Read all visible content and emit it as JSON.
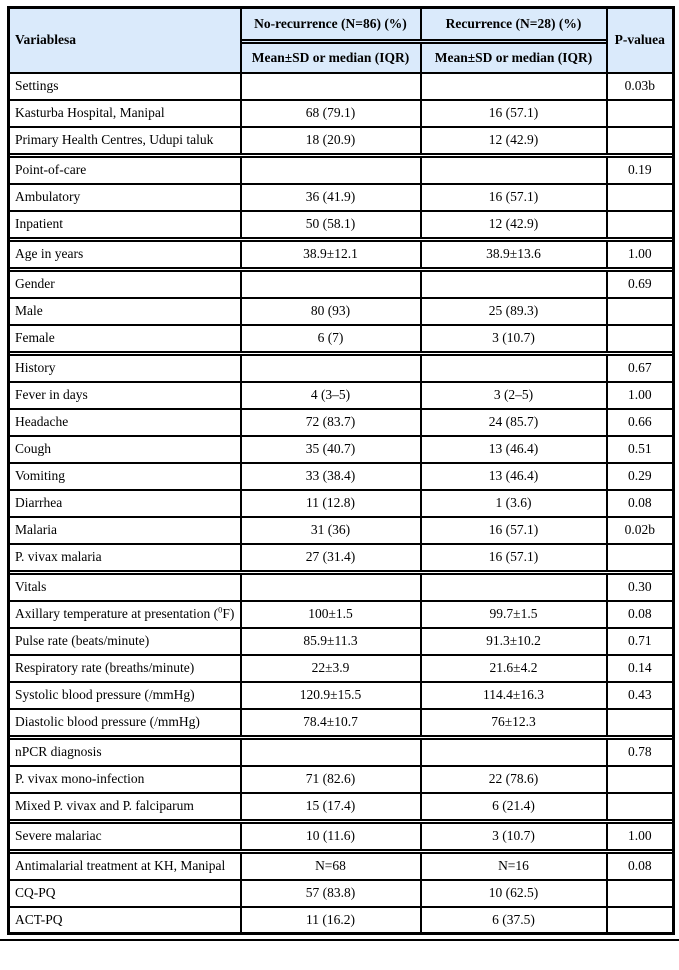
{
  "colors": {
    "header_bg": "#daeafb",
    "border": "#000000",
    "page_bg": "#ffffff"
  },
  "table": {
    "header": {
      "col_variables": "Variablesa",
      "col_no_recurrence": "No-recurrence (N=86) (%)",
      "col_recurrence": "Recurrence (N=28) (%)",
      "col_p_value": "P-valuea",
      "subheader_no_recurrence": "Mean±SD or median (IQR)",
      "subheader_recurrence": "Mean±SD or median (IQR)"
    },
    "rows": [
      {
        "type": "row",
        "label": "Settings",
        "no_recurrence": "",
        "recurrence": "",
        "p_value": "0.03b"
      },
      {
        "type": "row",
        "label": "Kasturba Hospital, Manipal",
        "no_recurrence": "68 (79.1)",
        "recurrence": "16 (57.1)",
        "p_value": ""
      },
      {
        "type": "row",
        "label": "Primary Health Centres, Udupi taluk",
        "no_recurrence": "18 (20.9)",
        "recurrence": "12 (42.9)",
        "p_value": ""
      },
      {
        "type": "separator"
      },
      {
        "type": "row",
        "label": "Point-of-care",
        "no_recurrence": "",
        "recurrence": "",
        "p_value": "0.19"
      },
      {
        "type": "row",
        "label": "Ambulatory",
        "no_recurrence": "36 (41.9)",
        "recurrence": "16 (57.1)",
        "p_value": ""
      },
      {
        "type": "row",
        "label": "Inpatient",
        "no_recurrence": "50 (58.1)",
        "recurrence": "12 (42.9)",
        "p_value": ""
      },
      {
        "type": "separator"
      },
      {
        "type": "row",
        "label": "Age in years",
        "no_recurrence": "38.9±12.1",
        "recurrence": "38.9±13.6",
        "p_value": "1.00"
      },
      {
        "type": "separator"
      },
      {
        "type": "row",
        "label": "Gender",
        "no_recurrence": "",
        "recurrence": "",
        "p_value": "0.69"
      },
      {
        "type": "row",
        "label": "Male",
        "no_recurrence": "80 (93)",
        "recurrence": "25 (89.3)",
        "p_value": ""
      },
      {
        "type": "row",
        "label": "Female",
        "no_recurrence": "6 (7)",
        "recurrence": "3 (10.7)",
        "p_value": ""
      },
      {
        "type": "separator"
      },
      {
        "type": "row",
        "label": "History",
        "no_recurrence": "",
        "recurrence": "",
        "p_value": "0.67"
      },
      {
        "type": "row",
        "label": "Fever in days",
        "no_recurrence": "4 (3–5)",
        "recurrence": "3 (2–5)",
        "p_value": "1.00"
      },
      {
        "type": "row",
        "label": "Headache",
        "no_recurrence": "72 (83.7)",
        "recurrence": "24 (85.7)",
        "p_value": "0.66"
      },
      {
        "type": "row",
        "label": "Cough",
        "no_recurrence": "35 (40.7)",
        "recurrence": "13 (46.4)",
        "p_value": "0.51"
      },
      {
        "type": "row",
        "label": "Vomiting",
        "no_recurrence": "33 (38.4)",
        "recurrence": "13 (46.4)",
        "p_value": "0.29"
      },
      {
        "type": "row",
        "label": "Diarrhea",
        "no_recurrence": "11 (12.8)",
        "recurrence": "1 (3.6)",
        "p_value": "0.08"
      },
      {
        "type": "row",
        "label": "Malaria",
        "no_recurrence": "31 (36)",
        "recurrence": "16 (57.1)",
        "p_value": "0.02b"
      },
      {
        "type": "row",
        "label": "P. vivax malaria",
        "no_recurrence": "27 (31.4)",
        "recurrence": "16 (57.1)",
        "p_value": ""
      },
      {
        "type": "separator"
      },
      {
        "type": "row",
        "label": "Vitals",
        "no_recurrence": "",
        "recurrence": "",
        "p_value": "0.30"
      },
      {
        "type": "row",
        "label_parts": [
          "Axillary temperature at presentation (",
          "0",
          "F)"
        ],
        "no_recurrence": "100±1.5",
        "recurrence": "99.7±1.5",
        "p_value": "0.08"
      },
      {
        "type": "row",
        "label": "Pulse rate (beats/minute)",
        "no_recurrence": "85.9±11.3",
        "recurrence": "91.3±10.2",
        "p_value": "0.71"
      },
      {
        "type": "row",
        "label": "Respiratory rate (breaths/minute)",
        "no_recurrence": "22±3.9",
        "recurrence": "21.6±4.2",
        "p_value": "0.14"
      },
      {
        "type": "row",
        "label": "Systolic blood pressure (/mmHg)",
        "no_recurrence": "120.9±15.5",
        "recurrence": "114.4±16.3",
        "p_value": "0.43"
      },
      {
        "type": "row",
        "label": "Diastolic blood pressure (/mmHg)",
        "no_recurrence": "78.4±10.7",
        "recurrence": "76±12.3",
        "p_value": ""
      },
      {
        "type": "separator"
      },
      {
        "type": "row",
        "label": "nPCR diagnosis",
        "no_recurrence": "",
        "recurrence": "",
        "p_value": "0.78"
      },
      {
        "type": "row",
        "label": "P. vivax mono-infection",
        "no_recurrence": "71 (82.6)",
        "recurrence": "22 (78.6)",
        "p_value": ""
      },
      {
        "type": "row",
        "label": "Mixed P. vivax and P. falciparum",
        "no_recurrence": "15 (17.4)",
        "recurrence": "6 (21.4)",
        "p_value": ""
      },
      {
        "type": "separator"
      },
      {
        "type": "row",
        "label": "Severe malariac",
        "no_recurrence": "10 (11.6)",
        "recurrence": "3 (10.7)",
        "p_value": "1.00"
      },
      {
        "type": "separator"
      },
      {
        "type": "row",
        "label": "Antimalarial treatment at KH, Manipal",
        "no_recurrence": "N=68",
        "recurrence": "N=16",
        "p_value": "0.08"
      },
      {
        "type": "row",
        "label": "CQ-PQ",
        "no_recurrence": "57 (83.8)",
        "recurrence": "10 (62.5)",
        "p_value": ""
      },
      {
        "type": "row",
        "label": "ACT-PQ",
        "no_recurrence": "11 (16.2)",
        "recurrence": "6 (37.5)",
        "p_value": ""
      }
    ]
  }
}
